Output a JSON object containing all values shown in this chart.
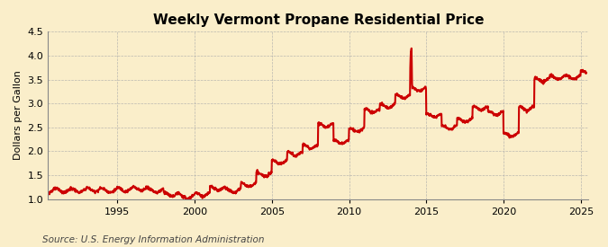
{
  "title": "Weekly Vermont Propane Residential Price",
  "ylabel": "Dollars per Gallon",
  "source": "Source: U.S. Energy Information Administration",
  "xlim": [
    1990.5,
    2025.5
  ],
  "ylim": [
    1.0,
    4.5
  ],
  "yticks": [
    1.0,
    1.5,
    2.0,
    2.5,
    3.0,
    3.5,
    4.0,
    4.5
  ],
  "xticks": [
    1995,
    2000,
    2005,
    2010,
    2015,
    2020,
    2025
  ],
  "line_color": "#cc0000",
  "background_color": "#faeeca",
  "grid_color": "#aaaaaa",
  "title_fontsize": 11,
  "label_fontsize": 8,
  "tick_fontsize": 8,
  "source_fontsize": 7.5,
  "annual_avg": {
    "1990": 1.18,
    "1991": 1.18,
    "1992": 1.18,
    "1993": 1.2,
    "1994": 1.18,
    "1995": 1.2,
    "1996": 1.22,
    "1997": 1.18,
    "1998": 1.1,
    "1999": 1.05,
    "2000": 1.1,
    "2001": 1.22,
    "2002": 1.18,
    "2003": 1.3,
    "2004": 1.52,
    "2005": 1.78,
    "2006": 1.95,
    "2007": 2.1,
    "2008": 2.55,
    "2009": 2.2,
    "2010": 2.45,
    "2011": 2.85,
    "2012": 2.95,
    "2013": 3.15,
    "2014": 3.3,
    "2015": 2.75,
    "2016": 2.5,
    "2017": 2.65,
    "2018": 2.9,
    "2019": 2.8,
    "2020": 2.35,
    "2021": 2.9,
    "2022": 3.5,
    "2023": 3.55,
    "2024": 3.55
  }
}
